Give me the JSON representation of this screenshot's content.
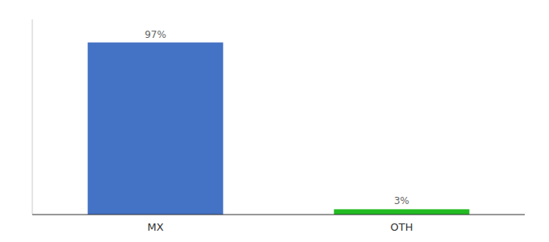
{
  "chart_data": {
    "type": "bar",
    "categories": [
      "MX",
      "OTH"
    ],
    "values": [
      97,
      3
    ],
    "value_labels": [
      "97%",
      "3%"
    ],
    "colors": [
      "#4472c4",
      "#22bb22"
    ],
    "ylim": [
      0,
      110
    ],
    "grid": false,
    "data_labels": true,
    "tick_labels": "x"
  }
}
